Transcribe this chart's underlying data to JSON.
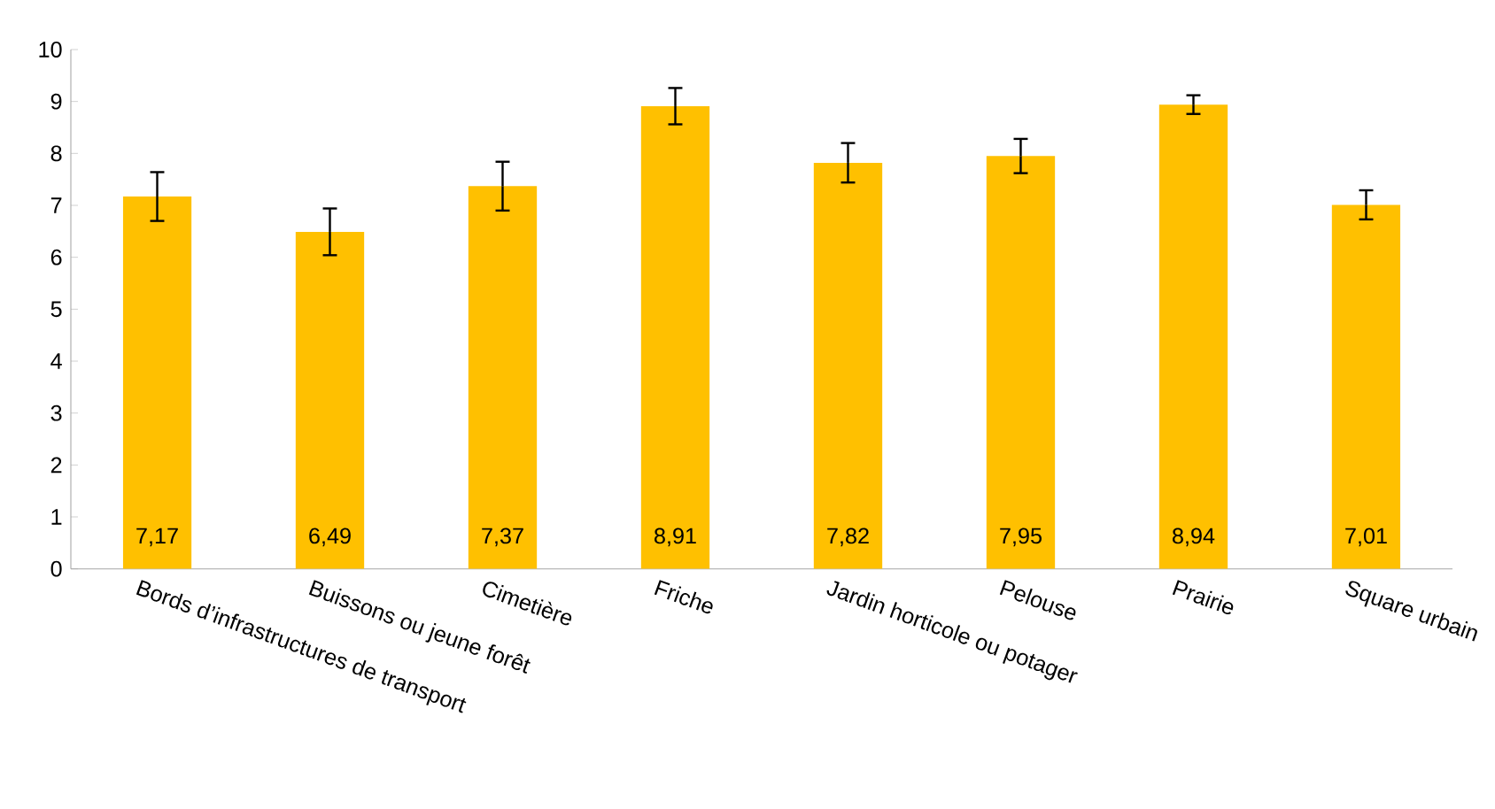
{
  "chart_data": {
    "type": "bar",
    "categories": [
      "Bords d’infrastructures de transport",
      "Buissons ou jeune forêt",
      "Cimetière",
      "Friche",
      "Jardin horticole ou potager",
      "Pelouse",
      "Prairie",
      "Square urbain"
    ],
    "values": [
      7.17,
      6.49,
      7.37,
      8.91,
      7.82,
      7.95,
      8.94,
      7.01
    ],
    "errors": [
      0.47,
      0.45,
      0.47,
      0.35,
      0.38,
      0.33,
      0.18,
      0.28
    ],
    "value_labels": [
      "7,17",
      "6,49",
      "7,37",
      "8,91",
      "7,82",
      "7,95",
      "8,94",
      "7,01"
    ],
    "color": "#ffc000",
    "ylim": [
      0,
      10
    ],
    "yticks": [
      0,
      1,
      2,
      3,
      4,
      5,
      6,
      7,
      8,
      9,
      10
    ]
  }
}
